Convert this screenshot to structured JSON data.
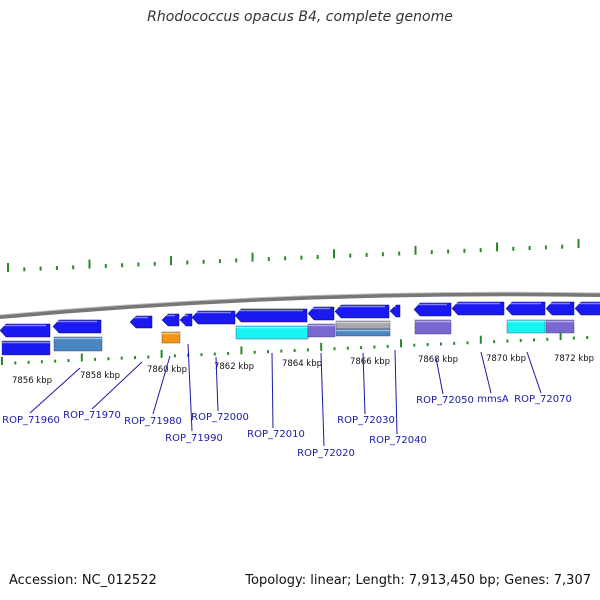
{
  "title": "Rhodococcus opacus B4, complete genome",
  "footer": {
    "accession_label": "Accession: NC_012522",
    "stats_label": "Topology: linear; Length: 7,913,450 bp; Genes: 7,307"
  },
  "colors": {
    "gene": "#1a1af0",
    "gene_light": "#4a86c0",
    "purple": "#7a68d0",
    "cyan": "#19f2f2",
    "orange": "#f59612",
    "gray": "#a9a9a9",
    "tick": "#2a8a2a",
    "label": "#1a1aa8",
    "backbone": "#777777"
  },
  "ruler": {
    "unit": "kbp",
    "tick_labels": [
      "7856 kbp",
      "7858 kbp",
      "7860 kbp",
      "7862 kbp",
      "7864 kbp",
      "7866 kbp",
      "7868 kbp",
      "7870 kbp",
      "7872 kbp"
    ]
  },
  "gene_labels": [
    "ROP_71960",
    "ROP_71970",
    "ROP_71980",
    "ROP_71990",
    "ROP_72000",
    "ROP_72010",
    "ROP_72020",
    "ROP_72030",
    "ROP_72040",
    "ROP_72050",
    "mmsA",
    "ROP_72070"
  ]
}
